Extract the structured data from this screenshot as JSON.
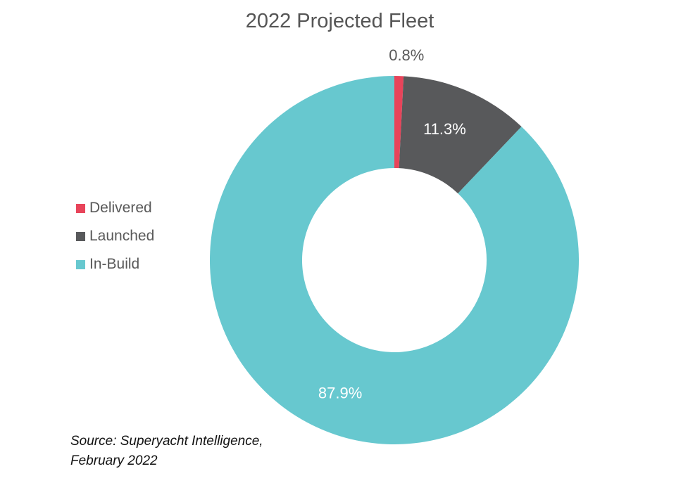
{
  "chart_data": {
    "type": "pie",
    "variant": "donut",
    "title": "2022 Projected Fleet",
    "categories": [
      "Delivered",
      "Launched",
      "In-Build"
    ],
    "values": [
      0.8,
      11.3,
      87.9
    ],
    "data_labels": [
      "0.8%",
      "11.3%",
      "87.9%"
    ],
    "colors": [
      "#e8445a",
      "#58595b",
      "#67c8cf"
    ],
    "legend_position": "left"
  },
  "source": {
    "line1": "Source: Superyacht Intelligence,",
    "line2": "February 2022"
  }
}
